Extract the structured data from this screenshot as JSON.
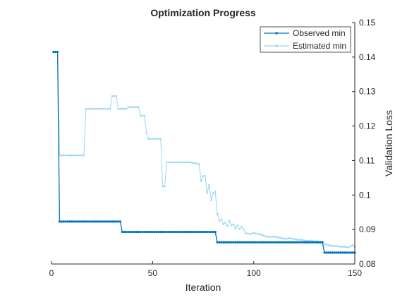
{
  "chart_data": {
    "type": "line",
    "title": "Optimization Progress",
    "xlabel": "Iteration",
    "ylabel": "Validation Loss",
    "xlim": [
      0,
      150
    ],
    "ylim": [
      0.08,
      0.15
    ],
    "xticks": [
      "0",
      "50",
      "100",
      "150"
    ],
    "yticks": [
      "0.08",
      "0.09",
      "0.1",
      "0.11",
      "0.12",
      "0.13",
      "0.14",
      "0.15"
    ],
    "y_axis_side": "right",
    "grid": false,
    "legend_position": "top-right",
    "series": [
      {
        "name": "Observed min",
        "color": "#0072bd",
        "marker": "dot",
        "points": [
          [
            1,
            0.1415
          ],
          [
            2,
            0.1415
          ],
          [
            3,
            0.1415
          ],
          [
            4,
            0.0923
          ],
          [
            10,
            0.0923
          ],
          [
            20,
            0.0923
          ],
          [
            30,
            0.0923
          ],
          [
            34,
            0.0923
          ],
          [
            35,
            0.0893
          ],
          [
            45,
            0.0893
          ],
          [
            55,
            0.0893
          ],
          [
            65,
            0.0893
          ],
          [
            75,
            0.0893
          ],
          [
            81,
            0.0893
          ],
          [
            82,
            0.0863
          ],
          [
            95,
            0.0863
          ],
          [
            105,
            0.0863
          ],
          [
            115,
            0.0863
          ],
          [
            125,
            0.0863
          ],
          [
            134,
            0.0863
          ],
          [
            135,
            0.0833
          ],
          [
            140,
            0.0833
          ],
          [
            145,
            0.0833
          ],
          [
            150,
            0.0833
          ]
        ]
      },
      {
        "name": "Estimated min",
        "color": "#9bd6f5",
        "marker": "dot",
        "points": [
          [
            1,
            0.1415
          ],
          [
            2,
            0.1415
          ],
          [
            3,
            0.1415
          ],
          [
            4,
            0.1115
          ],
          [
            10,
            0.1115
          ],
          [
            16,
            0.1115
          ],
          [
            17,
            0.125
          ],
          [
            23,
            0.125
          ],
          [
            29,
            0.125
          ],
          [
            30,
            0.1287
          ],
          [
            32,
            0.1287
          ],
          [
            33,
            0.125
          ],
          [
            37,
            0.125
          ],
          [
            38,
            0.1255
          ],
          [
            43,
            0.1255
          ],
          [
            44,
            0.123
          ],
          [
            46,
            0.123
          ],
          [
            47,
            0.118
          ],
          [
            48,
            0.1163
          ],
          [
            54,
            0.1163
          ],
          [
            55,
            0.1025
          ],
          [
            56,
            0.1025
          ],
          [
            57,
            0.1095
          ],
          [
            62,
            0.1095
          ],
          [
            68,
            0.1095
          ],
          [
            73,
            0.109
          ],
          [
            74,
            0.104
          ],
          [
            75,
            0.1055
          ],
          [
            76,
            0.1055
          ],
          [
            77,
            0.1005
          ],
          [
            78,
            0.103
          ],
          [
            79,
            0.0985
          ],
          [
            80,
            0.1005
          ],
          [
            81,
            0.101
          ],
          [
            82,
            0.0945
          ],
          [
            83,
            0.0925
          ],
          [
            84,
            0.093
          ],
          [
            85,
            0.0915
          ],
          [
            86,
            0.092
          ],
          [
            87,
            0.091
          ],
          [
            88,
            0.0925
          ],
          [
            89,
            0.0912
          ],
          [
            90,
            0.0915
          ],
          [
            91,
            0.0903
          ],
          [
            92,
            0.0912
          ],
          [
            93,
            0.0902
          ],
          [
            94,
            0.0908
          ],
          [
            95,
            0.09
          ],
          [
            96,
            0.089
          ],
          [
            98,
            0.0887
          ],
          [
            100,
            0.089
          ],
          [
            102,
            0.0887
          ],
          [
            104,
            0.0885
          ],
          [
            106,
            0.088
          ],
          [
            108,
            0.0878
          ],
          [
            110,
            0.088
          ],
          [
            112,
            0.0877
          ],
          [
            114,
            0.0875
          ],
          [
            116,
            0.0873
          ],
          [
            118,
            0.0875
          ],
          [
            120,
            0.0872
          ],
          [
            122,
            0.087
          ],
          [
            124,
            0.087
          ],
          [
            126,
            0.0867
          ],
          [
            128,
            0.0868
          ],
          [
            130,
            0.0866
          ],
          [
            132,
            0.0865
          ],
          [
            134,
            0.0865
          ],
          [
            135,
            0.0858
          ],
          [
            137,
            0.0855
          ],
          [
            139,
            0.0852
          ],
          [
            141,
            0.0852
          ],
          [
            143,
            0.085
          ],
          [
            145,
            0.085
          ],
          [
            147,
            0.0848
          ],
          [
            149,
            0.0855
          ],
          [
            150,
            0.085
          ]
        ]
      }
    ]
  }
}
